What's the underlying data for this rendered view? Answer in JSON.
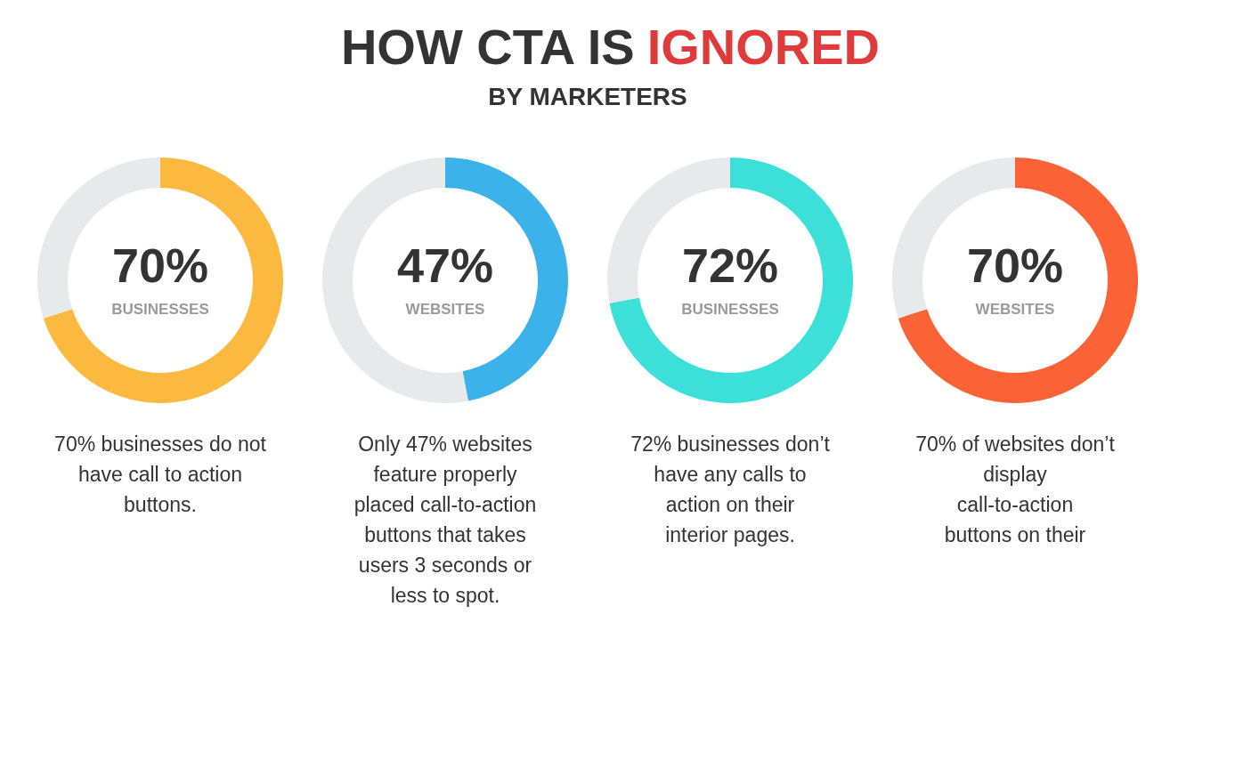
{
  "chart_data": [
    {
      "type": "other",
      "title": "HOW CTA IS IGNORED",
      "subtitle": "BY MARKETERS"
    },
    {
      "type": "donut",
      "categories": [
        null,
        null
      ],
      "values": [
        70,
        30
      ],
      "colors": [
        "#fbb940",
        "#e8e9eb"
      ],
      "value_labels": [
        "70%",
        null
      ],
      "annotations": [
        "BUSINESSES",
        "70% businesses do not have call to action buttons."
      ]
    },
    {
      "type": "donut",
      "categories": [
        null,
        null
      ],
      "values": [
        47,
        53
      ],
      "colors": [
        "#3bb3ea",
        "#e8e9eb"
      ],
      "value_labels": [
        "47%",
        null
      ],
      "annotations": [
        "WEBSITES",
        "Only 47% websites feature properly placed call-to-action buttons that takes users 3 seconds or less to spot."
      ]
    },
    {
      "type": "donut",
      "categories": [
        null,
        null
      ],
      "values": [
        72,
        28
      ],
      "colors": [
        "#3ddfd9",
        "#e8e9eb"
      ],
      "value_labels": [
        "72%",
        null
      ],
      "annotations": [
        "BUSINESSES",
        "72% businesses don’t have any calls to action on their interior pages."
      ]
    },
    {
      "type": "donut",
      "categories": [
        null,
        null
      ],
      "values": [
        70,
        30
      ],
      "colors": [
        "#fb6236",
        "#e8e9eb"
      ],
      "value_labels": [
        "70%",
        null
      ],
      "annotations": [
        "WEBSITES",
        "70% of websites don’t display call-to-action buttons on their"
      ]
    }
  ]
}
